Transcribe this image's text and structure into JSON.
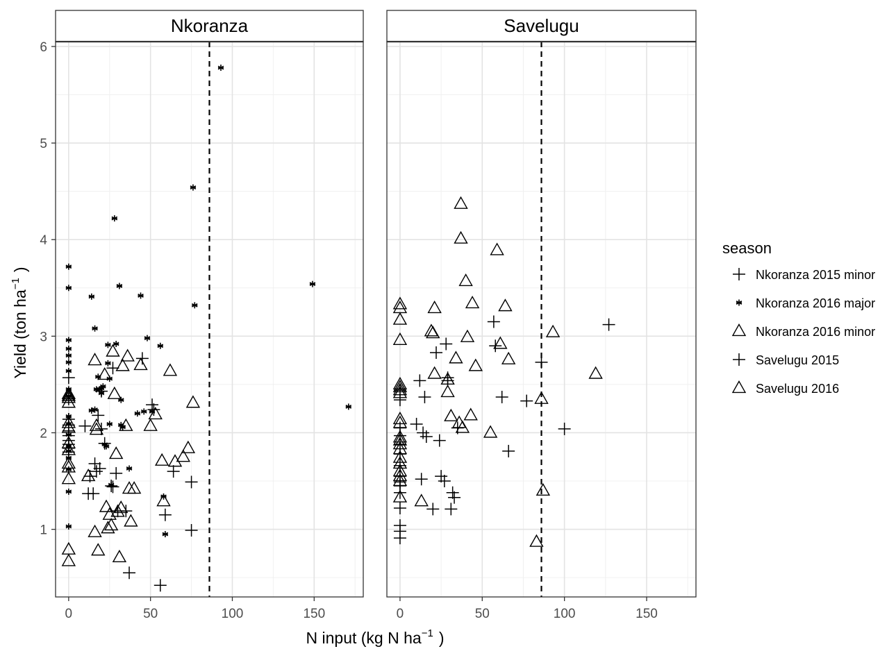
{
  "chart_data": {
    "type": "scatter",
    "facets": [
      "Nkoranza",
      "Savelugu"
    ],
    "xlabel": "N input (kg N  ha",
    "xlabel_sup": "−1",
    "xlabel_end": ")",
    "ylabel": "Yield (ton  ha",
    "ylabel_sup": "−1",
    "ylabel_end": ")",
    "xlim": [
      -8,
      180
    ],
    "ylim": [
      0.3,
      6.05
    ],
    "xticks": [
      0,
      50,
      100,
      150
    ],
    "xtick_labels": [
      "0",
      "50",
      "100",
      "150"
    ],
    "yticks": [
      1,
      2,
      3,
      4,
      5,
      6
    ],
    "ytick_labels": [
      "1",
      "2",
      "3",
      "4",
      "5",
      "6"
    ],
    "grid": true,
    "threshold_x": 86,
    "legend": {
      "title": "season",
      "position": "right",
      "entries": [
        {
          "label": "Nkoranza 2015 minor",
          "shape": "plus"
        },
        {
          "label": "Nkoranza 2016 major",
          "shape": "asterisk"
        },
        {
          "label": "Nkoranza 2016 minor",
          "shape": "triangle"
        },
        {
          "label": "Savelugu 2015",
          "shape": "plus"
        },
        {
          "label": "Savelugu 2016",
          "shape": "triangle"
        }
      ]
    },
    "series": [
      {
        "name": "Nkoranza 2015 minor",
        "shape": "plus",
        "facet": 0,
        "x": [
          0,
          0,
          0,
          0,
          0,
          0,
          0,
          0,
          0,
          0,
          10,
          12,
          13,
          15,
          16,
          17,
          18,
          19,
          20,
          20,
          22,
          26,
          27,
          27,
          29,
          30,
          35,
          37,
          45,
          51,
          52,
          56,
          59,
          64,
          75,
          75
        ],
        "y": [
          2.57,
          2.35,
          2.14,
          2.08,
          2.02,
          1.97,
          1.92,
          1.88,
          1.84,
          1.8,
          2.07,
          1.37,
          1.55,
          1.37,
          1.68,
          1.6,
          2.18,
          1.63,
          2.04,
          2.43,
          1.89,
          1.45,
          1.44,
          2.67,
          1.58,
          1.19,
          1.19,
          0.55,
          2.77,
          2.29,
          2.24,
          0.42,
          1.15,
          1.6,
          0.99,
          1.49
        ]
      },
      {
        "name": "Nkoranza 2016 major",
        "shape": "asterisk",
        "facet": 0,
        "x": [
          0,
          0,
          0,
          0,
          0,
          0,
          0,
          0,
          0,
          0,
          0,
          0,
          0,
          0,
          0,
          0,
          0,
          0,
          14,
          14,
          16,
          16,
          17,
          18,
          19,
          20,
          20,
          21,
          22,
          23,
          24,
          24,
          25,
          25,
          26,
          28,
          29,
          31,
          32,
          32,
          33,
          33,
          37,
          42,
          44,
          46,
          48,
          51,
          56,
          58,
          59,
          76,
          77,
          93,
          149,
          171
        ],
        "y": [
          3.72,
          3.5,
          2.96,
          2.87,
          2.8,
          2.73,
          2.64,
          2.45,
          2.38,
          2.17,
          2.09,
          1.98,
          1.86,
          1.81,
          1.74,
          1.62,
          1.39,
          1.03,
          3.41,
          2.23,
          3.08,
          2.24,
          2.45,
          2.58,
          2.45,
          2.46,
          2.41,
          2.48,
          1.88,
          1.86,
          2.72,
          2.91,
          2.09,
          2.56,
          1.46,
          4.22,
          2.92,
          3.52,
          2.34,
          2.08,
          2.06,
          2.06,
          1.63,
          2.2,
          3.42,
          2.22,
          2.98,
          2.22,
          2.9,
          1.34,
          0.95,
          4.54,
          3.32,
          5.78,
          3.54,
          2.27
        ]
      },
      {
        "name": "Nkoranza 2016 minor",
        "shape": "triangle",
        "facet": 0,
        "x": [
          0,
          0,
          0,
          0,
          0,
          0,
          0,
          0,
          0,
          0,
          0,
          0,
          0,
          12,
          16,
          16,
          17,
          17,
          18,
          22,
          23,
          24,
          25,
          26,
          27,
          28,
          29,
          30,
          31,
          32,
          33,
          35,
          36,
          37,
          38,
          40,
          44,
          50,
          53,
          57,
          58,
          62,
          65,
          70,
          73,
          76
        ],
        "y": [
          2.4,
          2.36,
          2.31,
          2.1,
          2.05,
          1.89,
          1.82,
          1.68,
          1.64,
          1.52,
          0.79,
          0.67,
          2.38,
          1.55,
          0.97,
          2.75,
          2.07,
          2.03,
          0.78,
          2.6,
          1.23,
          1.01,
          1.15,
          1.04,
          2.84,
          2.4,
          1.78,
          1.18,
          0.71,
          1.22,
          2.69,
          2.07,
          2.79,
          1.42,
          1.08,
          1.42,
          2.7,
          2.07,
          2.19,
          1.71,
          1.29,
          2.64,
          1.7,
          1.75,
          1.84,
          2.31
        ]
      },
      {
        "name": "Savelugu 2015",
        "shape": "plus",
        "facet": 1,
        "x": [
          0,
          0,
          0,
          0,
          0,
          0,
          0,
          0,
          0,
          0,
          0,
          0,
          0,
          0,
          0,
          10,
          12,
          13,
          14,
          15,
          16,
          20,
          22,
          24,
          25,
          27,
          28,
          29,
          29,
          31,
          32,
          33,
          35,
          57,
          58,
          62,
          66,
          77,
          86,
          100,
          127
        ],
        "y": [
          2.44,
          2.34,
          2.05,
          1.97,
          1.88,
          1.78,
          1.66,
          1.55,
          1.49,
          1.45,
          1.38,
          1.22,
          1.04,
          0.98,
          0.91,
          2.09,
          2.54,
          1.52,
          2.0,
          2.37,
          1.96,
          1.21,
          2.83,
          1.92,
          1.55,
          1.5,
          2.92,
          2.54,
          2.57,
          1.21,
          1.38,
          1.33,
          2.05,
          3.15,
          2.9,
          2.37,
          1.81,
          2.33,
          2.73,
          2.04,
          3.12
        ]
      },
      {
        "name": "Savelugu 2016",
        "shape": "triangle",
        "facet": 1,
        "x": [
          0,
          0,
          0,
          0,
          0,
          0,
          0,
          0,
          0,
          0,
          0,
          0,
          0,
          0,
          0,
          0,
          0,
          0,
          0,
          0,
          13,
          19,
          20,
          21,
          21,
          29,
          29,
          31,
          34,
          36,
          37,
          37,
          38,
          40,
          41,
          43,
          44,
          46,
          55,
          59,
          61,
          64,
          66,
          83,
          86,
          87,
          93,
          119
        ],
        "y": [
          3.33,
          3.29,
          3.17,
          2.96,
          2.5,
          2.47,
          2.44,
          2.41,
          2.14,
          2.1,
          1.95,
          1.92,
          1.88,
          1.83,
          1.74,
          1.68,
          1.6,
          1.55,
          1.5,
          1.33,
          1.29,
          3.05,
          3.03,
          3.29,
          2.61,
          2.42,
          2.55,
          2.17,
          2.77,
          2.1,
          4.37,
          4.01,
          2.05,
          3.57,
          2.99,
          2.18,
          3.34,
          2.69,
          2.0,
          3.89,
          2.92,
          3.31,
          2.76,
          0.87,
          2.35,
          1.4,
          3.04,
          2.61
        ]
      }
    ]
  }
}
